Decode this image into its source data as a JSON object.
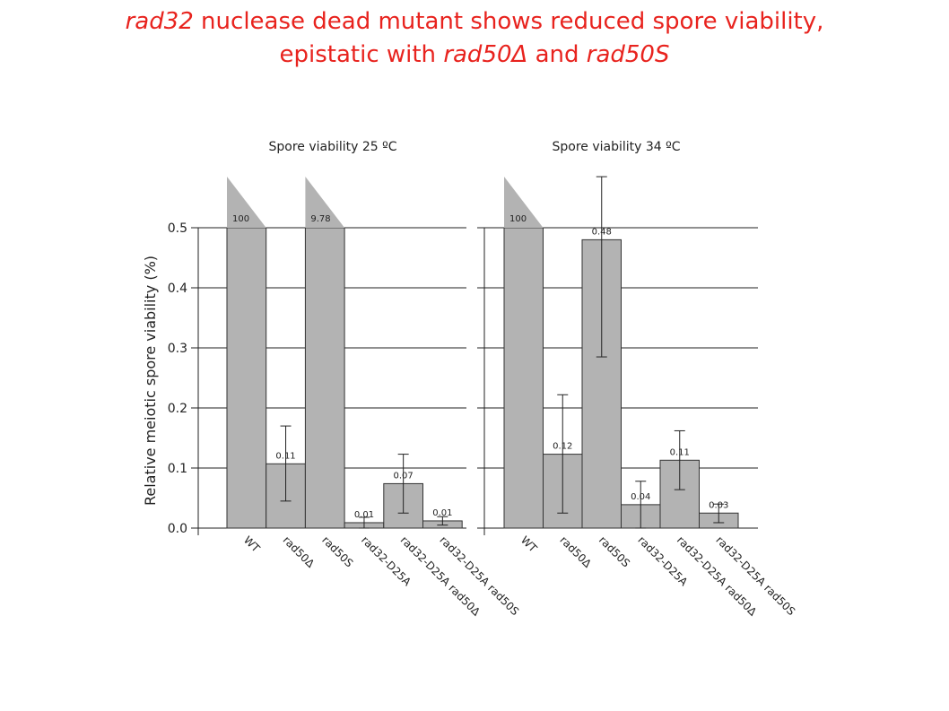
{
  "slide_title": {
    "line1_italic": "rad32",
    "line1_rest": " nuclease dead mutant shows reduced spore viability,",
    "line2_prefix": "epistatic with ",
    "line2_italic1": "rad50Δ",
    "line2_mid": " and ",
    "line2_italic2": "rad50S"
  },
  "colors": {
    "title": "#e8231e",
    "bar_fill": "#b3b3b3",
    "bar_stroke": "#333333",
    "axis": "#222222"
  },
  "chart_data": [
    {
      "type": "bar",
      "title": "Spore viability 25 ºC",
      "ylabel": "Relative meiotic spore viability (%)",
      "ylim": [
        0,
        0.5
      ],
      "yticks": [
        "0.0",
        "0.1",
        "0.2",
        "0.3",
        "0.4",
        "0.5"
      ],
      "grid": true,
      "categories": [
        "WT",
        "rad50Δ",
        "rad50S",
        "rad32-D25A",
        "rad32-D25A rad50Δ",
        "rad32-D25A rad50S"
      ],
      "values": [
        100,
        0.107,
        9.78,
        0.009,
        0.074,
        0.012
      ],
      "value_labels": [
        "100",
        "0.11",
        "9.78",
        "0.01",
        "0.07",
        "0.01"
      ],
      "error_low": [
        null,
        0.045,
        null,
        0.0,
        0.025,
        0.005
      ],
      "error_high": [
        null,
        0.17,
        null,
        0.018,
        0.123,
        0.019
      ],
      "off_scale": [
        true,
        false,
        true,
        false,
        false,
        false
      ]
    },
    {
      "type": "bar",
      "title": "Spore viability 34 ºC",
      "ylabel": "",
      "ylim": [
        0,
        0.5
      ],
      "grid": true,
      "categories": [
        "WT",
        "rad50Δ",
        "rad50S",
        "rad32-D25A",
        "rad32-D25A rad50Δ",
        "rad32-D25A rad50S"
      ],
      "values": [
        100,
        0.123,
        0.48,
        0.039,
        0.113,
        0.025
      ],
      "value_labels": [
        "100",
        "0.12",
        "0.48",
        "0.04",
        "0.11",
        "0.03"
      ],
      "error_low": [
        null,
        0.025,
        0.285,
        0.0,
        0.064,
        0.009
      ],
      "error_high": [
        null,
        0.222,
        0.585,
        0.078,
        0.162,
        0.04
      ],
      "off_scale": [
        true,
        false,
        false,
        false,
        false,
        false
      ]
    }
  ]
}
